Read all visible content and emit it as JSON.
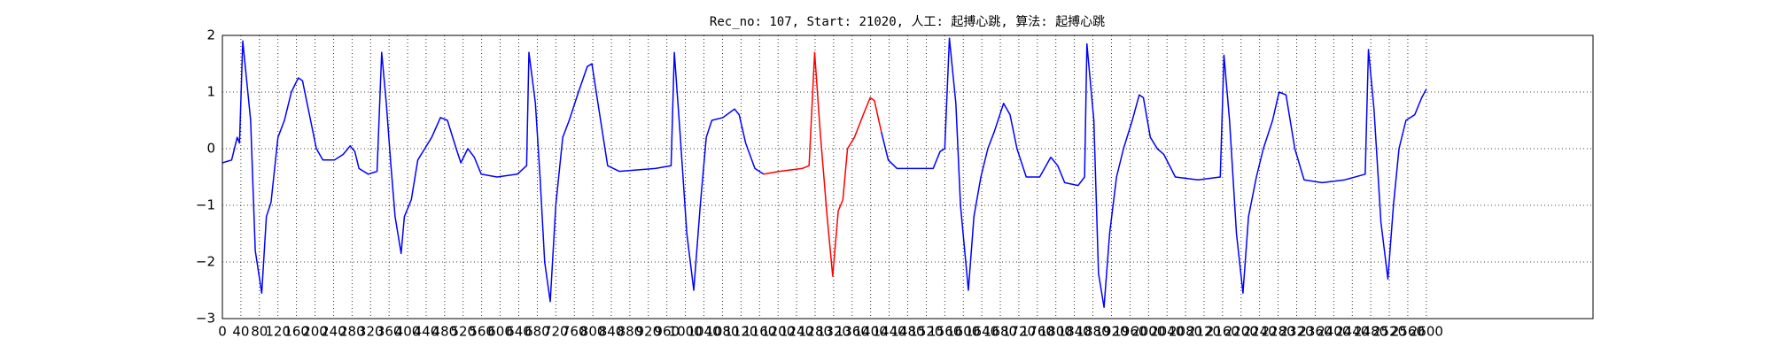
{
  "chart_data": {
    "type": "line",
    "title": "Rec_no: 107, Start: 21020, 人工: 起搏心跳, 算法: 起搏心跳",
    "x": [
      0,
      20,
      32,
      37,
      44,
      61,
      71,
      85,
      95,
      105,
      120,
      134,
      149,
      164,
      173,
      188,
      203,
      217,
      242,
      261,
      276,
      286,
      295,
      315,
      334,
      344,
      354,
      364,
      373,
      386,
      393,
      408,
      422,
      437,
      452,
      471,
      486,
      505,
      515,
      530,
      544,
      559,
      593,
      637,
      657,
      662,
      676,
      686,
      696,
      708,
      720,
      735,
      749,
      769,
      788,
      798,
      813,
      832,
      857,
      935,
      969,
      976,
      989,
      1003,
      1018,
      1032,
      1045,
      1057,
      1081,
      1106,
      1116,
      1130,
      1150,
      1169,
      1203,
      1252,
      1267,
      1279,
      1291,
      1306,
      1318,
      1330,
      1340,
      1350,
      1365,
      1384,
      1399,
      1408,
      1423,
      1438,
      1457,
      1496,
      1535,
      1550,
      1560,
      1570,
      1584,
      1594,
      1611,
      1623,
      1638,
      1653,
      1667,
      1687,
      1701,
      1716,
      1736,
      1765,
      1789,
      1804,
      1819,
      1848,
      1862,
      1867,
      1882,
      1892,
      1904,
      1916,
      1931,
      1946,
      1965,
      1980,
      1989,
      2004,
      2019,
      2033,
      2058,
      2107,
      2155,
      2163,
      2175,
      2190,
      2204,
      2216,
      2233,
      2248,
      2268,
      2282,
      2297,
      2316,
      2336,
      2375,
      2424,
      2468,
      2475,
      2487,
      2502,
      2517,
      2529,
      2541,
      2556,
      2575,
      2590,
      2600
    ],
    "series": [
      {
        "color": "#0000ff",
        "values": [
          -0.25,
          -0.2,
          0.2,
          0.1,
          1.9,
          0.5,
          -1.8,
          -2.55,
          -1.2,
          -0.95,
          0.2,
          0.5,
          1.0,
          1.25,
          1.2,
          0.6,
          0,
          -0.2,
          -0.2,
          -0.1,
          0.05,
          -0.05,
          -0.35,
          -0.45,
          -0.4,
          1.7,
          0.8,
          -0.3,
          -1.2,
          -1.85,
          -1.2,
          -0.9,
          -0.2,
          0,
          0.2,
          0.55,
          0.5,
          0,
          -0.25,
          0,
          -0.15,
          -0.45,
          -0.5,
          -0.45,
          -0.3,
          1.7,
          0.8,
          -0.5,
          -2.0,
          -2.7,
          -1.0,
          0.2,
          0.5,
          1.0,
          1.45,
          1.5,
          0.7,
          -0.3,
          -0.4,
          -0.35,
          -0.3,
          1.7,
          0.2,
          -1.5,
          -2.5,
          -1.0,
          0.2,
          0.5,
          0.55,
          0.7,
          0.6,
          0.1,
          -0.35,
          -0.45,
          null,
          null,
          null,
          null,
          null,
          null,
          null,
          null,
          null,
          null,
          null,
          null,
          null,
          null,
          0.3,
          -0.2,
          -0.35,
          -0.35,
          -0.35,
          -0.05,
          0,
          1.95,
          0.8,
          -1.0,
          -2.5,
          -1.2,
          -0.5,
          0,
          0.3,
          0.8,
          0.6,
          0,
          -0.5,
          -0.5,
          -0.15,
          -0.3,
          -0.6,
          -0.65,
          -0.5,
          1.85,
          0.5,
          -2.2,
          -2.8,
          -1.5,
          -0.5,
          0,
          0.5,
          0.95,
          0.9,
          0.2,
          0,
          -0.1,
          -0.5,
          -0.55,
          -0.5,
          1.65,
          0.5,
          -1.5,
          -2.55,
          -1.2,
          -0.5,
          0,
          0.5,
          1.0,
          0.95,
          0,
          -0.55,
          -0.6,
          -0.55,
          -0.45,
          1.75,
          0.7,
          -1.3,
          -2.3,
          -1.0,
          0,
          0.5,
          0.6,
          0.9,
          1.05
        ]
      },
      {
        "color": "#ff0000",
        "values": [
          null,
          null,
          null,
          null,
          null,
          null,
          null,
          null,
          null,
          null,
          null,
          null,
          null,
          null,
          null,
          null,
          null,
          null,
          null,
          null,
          null,
          null,
          null,
          null,
          null,
          null,
          null,
          null,
          null,
          null,
          null,
          null,
          null,
          null,
          null,
          null,
          null,
          null,
          null,
          null,
          null,
          null,
          null,
          null,
          null,
          null,
          null,
          null,
          null,
          null,
          null,
          null,
          null,
          null,
          null,
          null,
          null,
          null,
          null,
          null,
          null,
          null,
          null,
          null,
          null,
          null,
          null,
          null,
          null,
          null,
          null,
          null,
          null,
          -0.45,
          -0.4,
          -0.35,
          -0.3,
          1.7,
          0.3,
          -1.2,
          -2.25,
          -1.1,
          -0.9,
          0,
          0.2,
          0.6,
          0.9,
          0.85,
          0.3,
          null,
          null,
          null,
          null,
          null,
          null,
          null,
          null,
          null,
          null,
          null,
          null,
          null,
          null,
          null,
          null,
          null,
          null,
          null,
          null,
          null,
          null,
          null,
          null,
          null,
          null,
          null,
          null,
          null,
          null,
          null,
          null,
          null,
          null,
          null,
          null,
          null,
          null,
          null,
          null,
          null,
          null,
          null,
          null,
          null,
          null,
          null,
          null,
          null,
          null,
          null,
          null,
          null,
          null,
          null,
          null,
          null,
          null,
          null,
          null,
          null,
          null,
          null,
          null,
          null
        ]
      }
    ],
    "xlim": [
      0,
      2960
    ],
    "xticks": [
      0,
      40,
      80,
      120,
      160,
      200,
      240,
      280,
      320,
      360,
      400,
      440,
      480,
      520,
      560,
      600,
      640,
      680,
      720,
      760,
      800,
      840,
      880,
      920,
      960,
      1000,
      1040,
      1080,
      1120,
      1160,
      1200,
      1240,
      1280,
      1320,
      1360,
      1400,
      1440,
      1480,
      1520,
      1560,
      1600,
      1640,
      1680,
      1720,
      1760,
      1800,
      1840,
      1880,
      1920,
      1960,
      2000,
      2040,
      2080,
      2120,
      2160,
      2200,
      2240,
      2280,
      2320,
      2360,
      2400,
      2440,
      2480,
      2520,
      2560,
      2600
    ],
    "ylim": [
      -3,
      2
    ],
    "yticks": [
      {
        "value": -3,
        "label": "−3"
      },
      {
        "value": -2,
        "label": "−2"
      },
      {
        "value": -1,
        "label": "−1"
      },
      0,
      1,
      2
    ],
    "grid": true
  }
}
